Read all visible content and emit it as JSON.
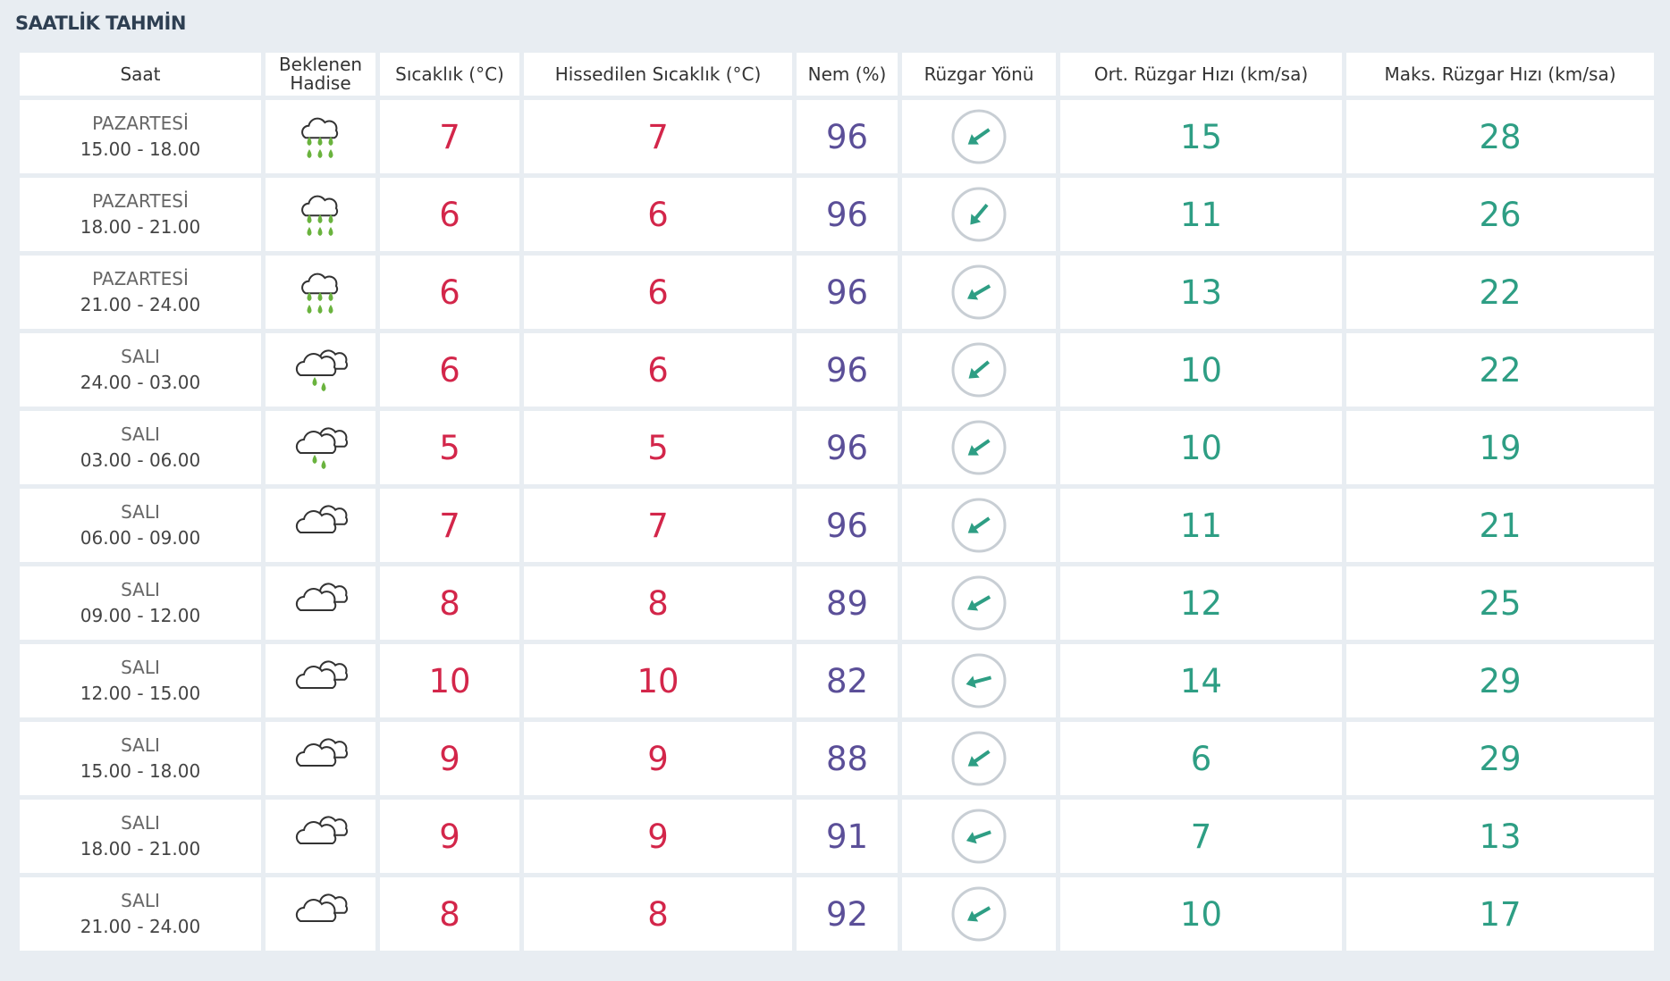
{
  "title": "SAATLİK TAHMİN",
  "table": {
    "headers": [
      "Saat",
      "Beklenen Hadise",
      "Sıcaklık (°C)",
      "Hissedilen Sıcaklık (°C)",
      "Nem (%)",
      "Rüzgar Yönü",
      "Ort. Rüzgar Hızı (km/sa)",
      "Maks. Rüzgar Hızı (km/sa)"
    ],
    "rows": [
      {
        "day": "PAZARTESİ",
        "time": "15.00 - 18.00",
        "temp": 7,
        "feels": 7,
        "humidity": 96,
        "avg_wind": 15,
        "max_wind": 28
      },
      {
        "day": "PAZARTESİ",
        "time": "18.00 - 21.00",
        "temp": 6,
        "feels": 6,
        "humidity": 96,
        "avg_wind": 11,
        "max_wind": 26
      },
      {
        "day": "PAZARTESİ",
        "time": "21.00 - 24.00",
        "temp": 6,
        "feels": 6,
        "humidity": 96,
        "avg_wind": 13,
        "max_wind": 22
      },
      {
        "day": "SALI",
        "time": "24.00 - 03.00",
        "temp": 6,
        "feels": 6,
        "humidity": 96,
        "avg_wind": 10,
        "max_wind": 22
      },
      {
        "day": "SALI",
        "time": "03.00 - 06.00",
        "temp": 5,
        "feels": 5,
        "humidity": 96,
        "avg_wind": 10,
        "max_wind": 19
      },
      {
        "day": "SALI",
        "time": "06.00 - 09.00",
        "temp": 7,
        "feels": 7,
        "humidity": 96,
        "avg_wind": 11,
        "max_wind": 21
      },
      {
        "day": "SALI",
        "time": "09.00 - 12.00",
        "temp": 8,
        "feels": 8,
        "humidity": 89,
        "avg_wind": 12,
        "max_wind": 25
      },
      {
        "day": "SALI",
        "time": "12.00 - 15.00",
        "temp": 10,
        "feels": 10,
        "humidity": 82,
        "avg_wind": 14,
        "max_wind": 29
      },
      {
        "day": "SALI",
        "time": "15.00 - 18.00",
        "temp": 9,
        "feels": 9,
        "humidity": 88,
        "avg_wind": 6,
        "max_wind": 29
      },
      {
        "day": "SALI",
        "time": "18.00 - 21.00",
        "temp": 9,
        "feels": 9,
        "humidity": 91,
        "avg_wind": 7,
        "max_wind": 13
      },
      {
        "day": "SALI",
        "time": "21.00 - 24.00",
        "temp": 8,
        "feels": 8,
        "humidity": 92,
        "avg_wind": 10,
        "max_wind": 17
      }
    ]
  }
}
